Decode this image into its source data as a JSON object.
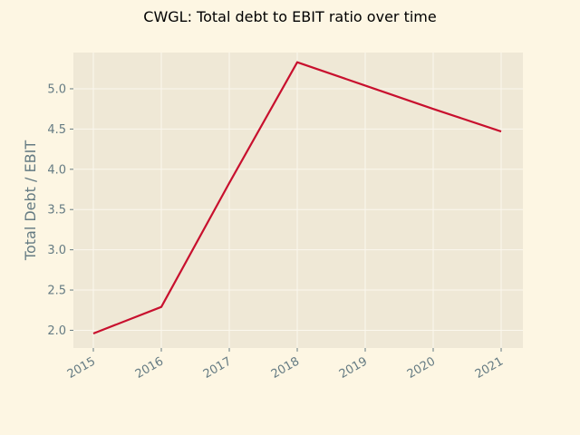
{
  "chart_data": {
    "type": "line",
    "title": "CWGL: Total debt to EBIT ratio over time",
    "xlabel": "",
    "ylabel": "Total Debt / EBIT",
    "x": [
      "2015",
      "2016",
      "2017",
      "2018",
      "2019",
      "2020",
      "2021"
    ],
    "series": [
      {
        "values": [
          1.96,
          2.29,
          3.83,
          5.33,
          5.04,
          4.75,
          4.47
        ]
      }
    ],
    "yticks": [
      "2.0",
      "2.5",
      "3.0",
      "3.5",
      "4.0",
      "4.5",
      "5.0"
    ],
    "ylim": [
      1.78,
      5.45
    ],
    "grid": true,
    "colors": {
      "page_background": "#fdf6e3",
      "plot_background": "#efe8d6",
      "grid": "#fbf7ee",
      "line": "#c8102e",
      "tick_text": "#657b83",
      "title_text": "#000000"
    }
  }
}
